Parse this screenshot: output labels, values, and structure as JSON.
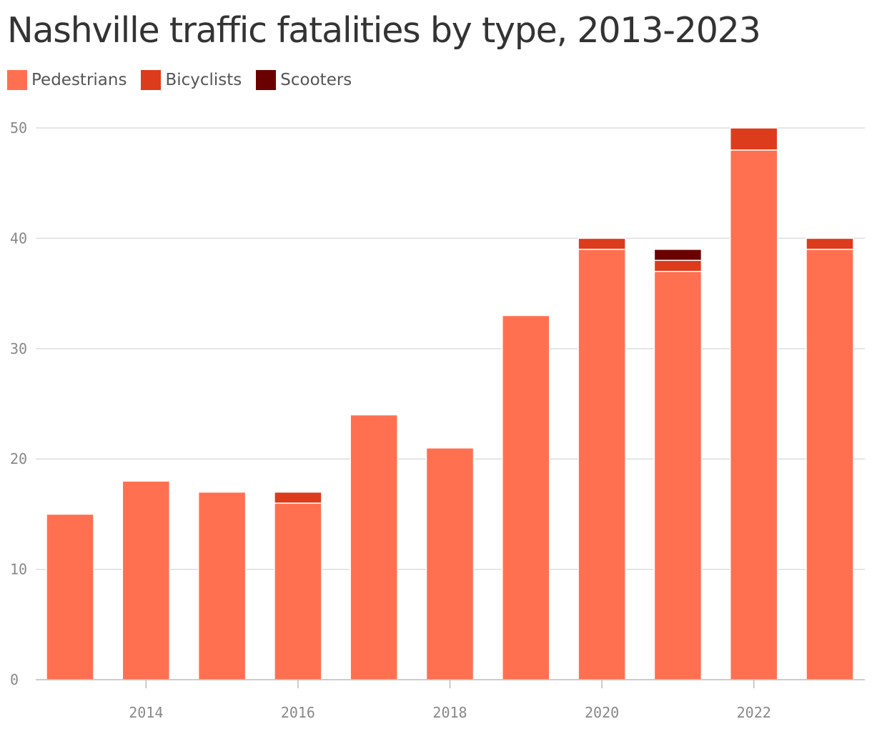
{
  "chart_data": {
    "type": "bar",
    "stacked": true,
    "title": "Nashville traffic fatalities by type, 2013-2023",
    "xlabel": "",
    "ylabel": "",
    "categories": [
      2013,
      2014,
      2015,
      2016,
      2017,
      2018,
      2019,
      2020,
      2021,
      2022,
      2023
    ],
    "series": [
      {
        "name": "Pedestrians",
        "color": "#ff7050",
        "values": [
          15,
          18,
          17,
          16,
          24,
          21,
          33,
          39,
          37,
          48,
          39
        ]
      },
      {
        "name": "Bicyclists",
        "color": "#dc3c1c",
        "values": [
          0,
          0,
          0,
          1,
          0,
          0,
          0,
          1,
          1,
          2,
          1
        ]
      },
      {
        "name": "Scooters",
        "color": "#6a0000",
        "values": [
          0,
          0,
          0,
          0,
          0,
          0,
          0,
          0,
          1,
          0,
          0
        ]
      }
    ],
    "ylim": [
      0,
      50
    ],
    "yticks": [
      0,
      10,
      20,
      30,
      40,
      50
    ],
    "xticks": [
      "2014",
      "2016",
      "2018",
      "2020",
      "2022"
    ],
    "legend_position": "top-left",
    "grid": true
  }
}
